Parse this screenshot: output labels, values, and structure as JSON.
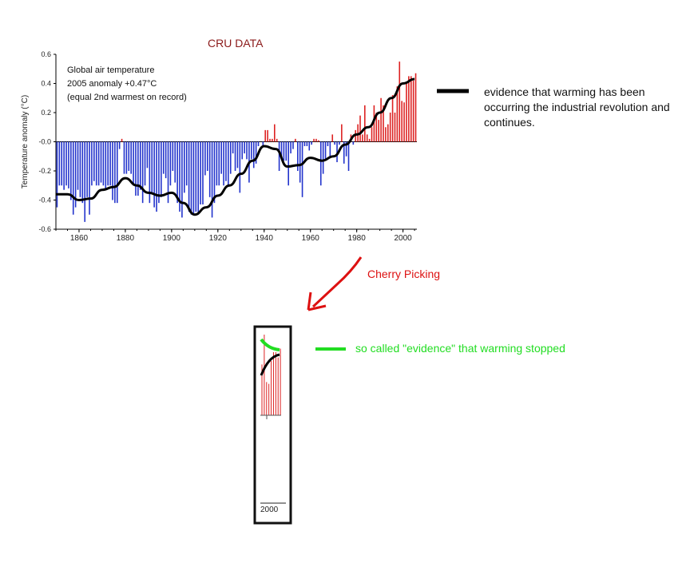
{
  "chart_data": {
    "type": "bar",
    "title": "CRU DATA",
    "ylabel": "Temperature anomaly (°C)",
    "xlabel": "",
    "annotation_lines": [
      "Global air temperature",
      "2005 anomaly +0.47°C",
      "(equal 2nd warmest on record)"
    ],
    "xlim": [
      1850,
      2006
    ],
    "ylim": [
      -0.6,
      0.6
    ],
    "x_ticks": [
      1860,
      1880,
      1900,
      1920,
      1940,
      1960,
      1980,
      2000
    ],
    "y_ticks": [
      0.6,
      0.4,
      0.2,
      0.0,
      -0.2,
      -0.4,
      -0.6
    ],
    "y_tick_labels": [
      "0.6",
      "0.4",
      "0.2",
      "-0.0",
      "-0.2",
      "-0.4",
      "-0.6"
    ],
    "years": [
      1850,
      1851,
      1852,
      1853,
      1854,
      1855,
      1856,
      1857,
      1858,
      1859,
      1860,
      1861,
      1862,
      1863,
      1864,
      1865,
      1866,
      1867,
      1868,
      1869,
      1870,
      1871,
      1872,
      1873,
      1874,
      1875,
      1876,
      1877,
      1878,
      1879,
      1880,
      1881,
      1882,
      1883,
      1884,
      1885,
      1886,
      1887,
      1888,
      1889,
      1890,
      1891,
      1892,
      1893,
      1894,
      1895,
      1896,
      1897,
      1898,
      1899,
      1900,
      1901,
      1902,
      1903,
      1904,
      1905,
      1906,
      1907,
      1908,
      1909,
      1910,
      1911,
      1912,
      1913,
      1914,
      1915,
      1916,
      1917,
      1918,
      1919,
      1920,
      1921,
      1922,
      1923,
      1924,
      1925,
      1926,
      1927,
      1928,
      1929,
      1930,
      1931,
      1932,
      1933,
      1934,
      1935,
      1936,
      1937,
      1938,
      1939,
      1940,
      1941,
      1942,
      1943,
      1944,
      1945,
      1946,
      1947,
      1948,
      1949,
      1950,
      1951,
      1952,
      1953,
      1954,
      1955,
      1956,
      1957,
      1958,
      1959,
      1960,
      1961,
      1962,
      1963,
      1964,
      1965,
      1966,
      1967,
      1968,
      1969,
      1970,
      1971,
      1972,
      1973,
      1974,
      1975,
      1976,
      1977,
      1978,
      1979,
      1980,
      1981,
      1982,
      1983,
      1984,
      1985,
      1986,
      1987,
      1988,
      1989,
      1990,
      1991,
      1992,
      1993,
      1994,
      1995,
      1996,
      1997,
      1998,
      1999,
      2000,
      2001,
      2002,
      2003,
      2004,
      2005
    ],
    "values": [
      -0.45,
      -0.3,
      -0.3,
      -0.33,
      -0.3,
      -0.32,
      -0.4,
      -0.5,
      -0.45,
      -0.33,
      -0.38,
      -0.42,
      -0.55,
      -0.38,
      -0.5,
      -0.3,
      -0.27,
      -0.3,
      -0.3,
      -0.28,
      -0.3,
      -0.33,
      -0.3,
      -0.3,
      -0.4,
      -0.42,
      -0.42,
      -0.05,
      0.02,
      -0.22,
      -0.22,
      -0.2,
      -0.22,
      -0.3,
      -0.37,
      -0.37,
      -0.33,
      -0.42,
      -0.3,
      -0.18,
      -0.42,
      -0.35,
      -0.45,
      -0.48,
      -0.42,
      -0.38,
      -0.22,
      -0.25,
      -0.42,
      -0.3,
      -0.2,
      -0.28,
      -0.42,
      -0.48,
      -0.52,
      -0.35,
      -0.3,
      -0.48,
      -0.5,
      -0.5,
      -0.48,
      -0.5,
      -0.43,
      -0.43,
      -0.23,
      -0.2,
      -0.38,
      -0.52,
      -0.42,
      -0.3,
      -0.3,
      -0.22,
      -0.3,
      -0.27,
      -0.3,
      -0.22,
      -0.08,
      -0.2,
      -0.18,
      -0.35,
      -0.12,
      -0.08,
      -0.12,
      -0.28,
      -0.12,
      -0.18,
      -0.15,
      -0.03,
      0.0,
      -0.03,
      0.08,
      0.08,
      0.02,
      0.02,
      0.12,
      0.02,
      -0.2,
      -0.12,
      -0.13,
      -0.13,
      -0.3,
      -0.08,
      -0.05,
      0.02,
      -0.2,
      -0.28,
      -0.38,
      -0.03,
      -0.03,
      -0.06,
      -0.02,
      0.02,
      0.02,
      0.01,
      -0.3,
      -0.22,
      -0.12,
      -0.03,
      -0.1,
      0.05,
      -0.02,
      -0.14,
      -0.02,
      0.12,
      -0.15,
      -0.1,
      -0.2,
      0.05,
      -0.02,
      0.08,
      0.12,
      0.18,
      0.05,
      0.25,
      0.05,
      0.02,
      0.1,
      0.25,
      0.2,
      0.15,
      0.3,
      0.25,
      0.1,
      0.12,
      0.2,
      0.32,
      0.2,
      0.38,
      0.55,
      0.28,
      0.27,
      0.4,
      0.45,
      0.45,
      0.42,
      0.47
    ],
    "smoothed": [
      [
        1850,
        -0.36
      ],
      [
        1855,
        -0.36
      ],
      [
        1860,
        -0.4
      ],
      [
        1865,
        -0.39
      ],
      [
        1870,
        -0.33
      ],
      [
        1875,
        -0.31
      ],
      [
        1880,
        -0.25
      ],
      [
        1885,
        -0.3
      ],
      [
        1890,
        -0.35
      ],
      [
        1895,
        -0.37
      ],
      [
        1900,
        -0.35
      ],
      [
        1905,
        -0.42
      ],
      [
        1910,
        -0.5
      ],
      [
        1915,
        -0.45
      ],
      [
        1920,
        -0.37
      ],
      [
        1925,
        -0.3
      ],
      [
        1930,
        -0.22
      ],
      [
        1935,
        -0.13
      ],
      [
        1940,
        -0.03
      ],
      [
        1945,
        -0.05
      ],
      [
        1950,
        -0.17
      ],
      [
        1955,
        -0.16
      ],
      [
        1960,
        -0.11
      ],
      [
        1965,
        -0.13
      ],
      [
        1970,
        -0.1
      ],
      [
        1975,
        -0.02
      ],
      [
        1980,
        0.05
      ],
      [
        1985,
        0.1
      ],
      [
        1990,
        0.2
      ],
      [
        1995,
        0.3
      ],
      [
        2000,
        0.4
      ],
      [
        2005,
        0.43
      ]
    ],
    "colors": {
      "negative": "#2233cc",
      "positive": "#dd2222",
      "smooth": "#000000",
      "inset_trend": "#22dd22",
      "arrow": "#dd1111",
      "title": "#8b1a1a"
    }
  },
  "legend_black_text": "evidence that warming has been occurring the industrial revolution and continues.",
  "cherry_label": "Cherry Picking",
  "legend_green_text": "so called \"evidence\" that warming stopped",
  "inset_axis_label": "2000"
}
